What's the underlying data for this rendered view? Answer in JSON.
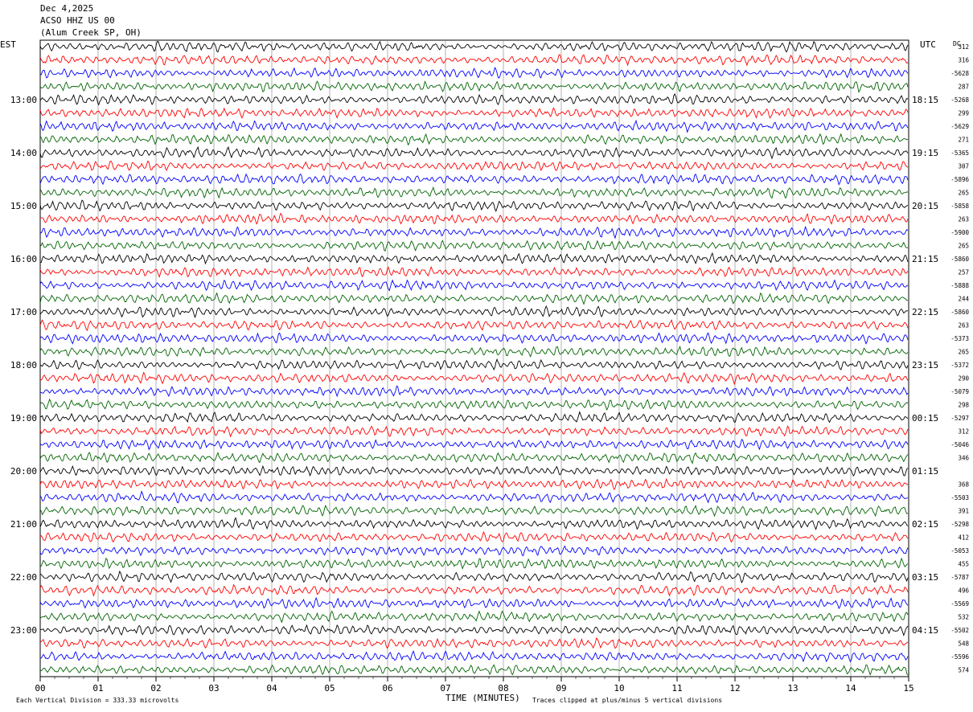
{
  "header": {
    "date": "Dec 4,2025",
    "station": "ACSO HHZ US 00",
    "location": "(Alum Creek SP, OH)",
    "left_zone": "EST",
    "right_zone": "UTC",
    "dc_label": "DC"
  },
  "footer": {
    "scale_note": "Each Vertical Division =  333.33 microvolts",
    "xlabel": "TIME (MINUTES)",
    "clip_note": "Traces clipped at plus/minus 5 vertical divisions"
  },
  "chart_data": {
    "type": "line",
    "title": "ACSO HHZ US 00 (Alum Creek SP, OH) Dec 4,2025",
    "xlabel": "TIME (MINUTES)",
    "ylabel": "",
    "xlim": [
      0,
      15
    ],
    "x_ticks": [
      "00",
      "01",
      "02",
      "03",
      "04",
      "05",
      "06",
      "07",
      "08",
      "09",
      "10",
      "11",
      "12",
      "13",
      "14",
      "15"
    ],
    "trace_count": 48,
    "minutes_per_trace": 15,
    "trace_colors": [
      "#000000",
      "#ff0000",
      "#0000ff",
      "#006400"
    ],
    "left_hour_labels": [
      "13:00",
      "14:00",
      "15:00",
      "16:00",
      "17:00",
      "18:00",
      "19:00",
      "20:00",
      "21:00",
      "22:00",
      "23:00"
    ],
    "right_hour_labels": [
      "18:15",
      "19:15",
      "20:15",
      "21:15",
      "22:15",
      "23:15",
      "00:15",
      "01:15",
      "02:15",
      "03:15",
      "04:15"
    ],
    "dc_offsets": [
      "312",
      "316",
      "-5628",
      "287",
      "-5268",
      "299",
      "-5629",
      "271",
      "-5365",
      "307",
      "-5896",
      "265",
      "-5858",
      "263",
      "-5900",
      "265",
      "-5860",
      "257",
      "-5888",
      "244",
      "-5860",
      "263",
      "-5373",
      "265",
      "-5372",
      "290",
      "-5079",
      "298",
      "-5297",
      "312",
      "-5046",
      "346",
      "",
      "368",
      "-5503",
      "391",
      "-5298",
      "412",
      "-5053",
      "455",
      "-5787",
      "496",
      "-5569",
      "532",
      "-5502",
      "548",
      "-5596",
      "574"
    ],
    "amplitude_divisions": 5
  }
}
